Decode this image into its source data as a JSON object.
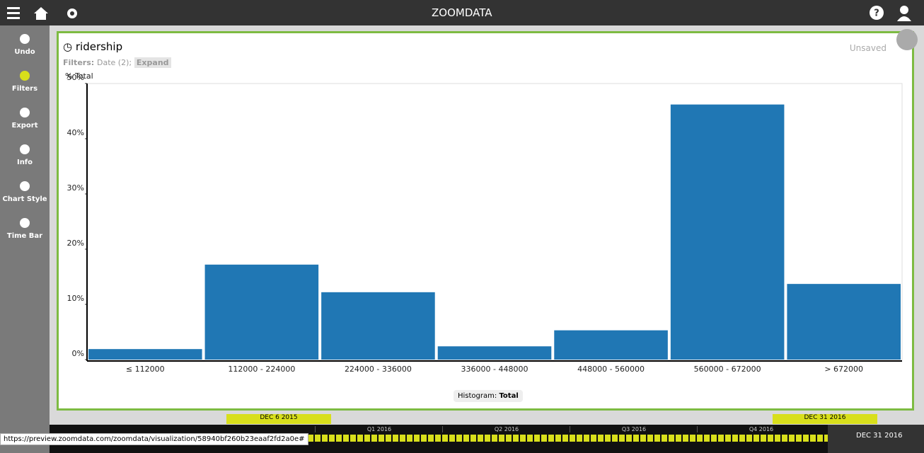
{
  "header": {
    "logo": "ZOOMDATA"
  },
  "sidebar": {
    "items": [
      "Undo",
      "Filters",
      "Export",
      "Info",
      "Chart Style",
      "Time Bar"
    ]
  },
  "panel": {
    "title": "ridership",
    "status": "Unsaved",
    "filters_label": "Filters:",
    "filters_value": "Date (2);",
    "expand": "Expand",
    "footer_label": "Histogram:",
    "footer_value": "Total"
  },
  "chart_data": {
    "type": "bar",
    "y_label": "% Total",
    "categories": [
      "≤ 112000",
      "112000 - 224000",
      "224000 - 336000",
      "336000 - 448000",
      "448000 - 560000",
      "560000 - 672000",
      "> 672000"
    ],
    "values": [
      1.9,
      17.2,
      12.2,
      2.4,
      5.3,
      46.2,
      13.7
    ],
    "color": "#2077b4",
    "ylim": [
      0,
      50
    ],
    "yticks": [
      {
        "value": 0,
        "label": "0%"
      },
      {
        "value": 10,
        "label": "10%"
      },
      {
        "value": 20,
        "label": "20%"
      },
      {
        "value": 30,
        "label": "30%"
      },
      {
        "value": 40,
        "label": "40%"
      },
      {
        "value": 50,
        "label": "50%"
      }
    ]
  },
  "timebar": {
    "start": "DEC 6 2015",
    "end": "DEC 31 2016",
    "quarters": [
      "Q1 2016",
      "Q2 2016",
      "Q3 2016",
      "Q4 2016"
    ],
    "end_date": "DEC 31 2016"
  },
  "status_url": "https://preview.zoomdata.com/zoomdata/visualization/58940bf260b23eaaf2fd2a0e#"
}
